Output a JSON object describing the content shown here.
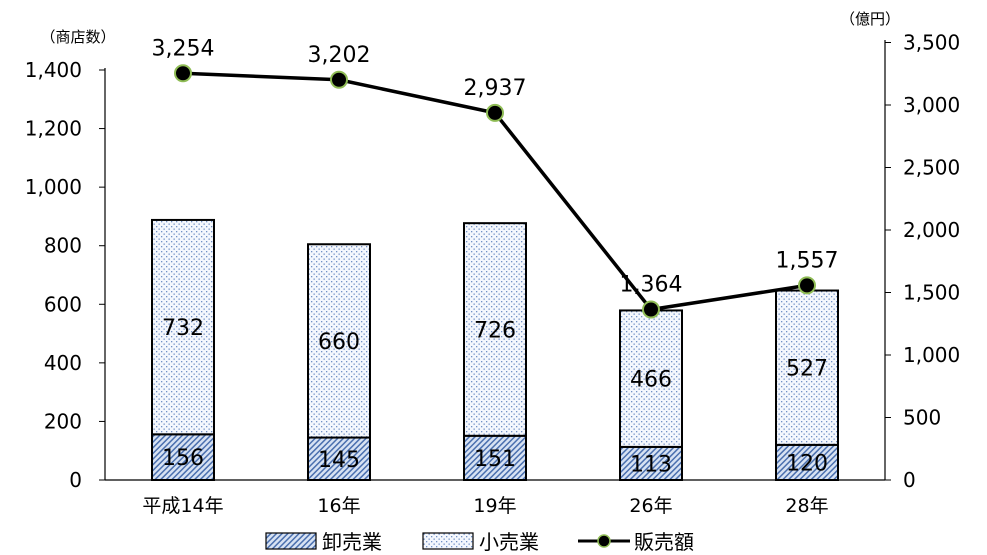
{
  "chart_data": {
    "type": "bar",
    "categories": [
      "平成14年",
      "16年",
      "19年",
      "26年",
      "28年"
    ],
    "series": [
      {
        "name": "卸売業",
        "type": "bar",
        "stack": true,
        "axis": "left",
        "values": [
          156,
          145,
          151,
          113,
          120
        ]
      },
      {
        "name": "小売業",
        "type": "bar",
        "stack": true,
        "axis": "left",
        "values": [
          732,
          660,
          726,
          466,
          527
        ]
      },
      {
        "name": "販売額",
        "type": "line",
        "axis": "right",
        "values": [
          3254,
          3202,
          2937,
          1364,
          1557
        ]
      }
    ],
    "left_axis": {
      "unit_label": "（商店数）",
      "ylim": [
        0,
        1400
      ],
      "ticks": [
        "0",
        "200",
        "400",
        "600",
        "800",
        "1,000",
        "1,200",
        "1,400"
      ]
    },
    "right_axis": {
      "unit_label": "（億円）",
      "ylim": [
        0,
        3500
      ],
      "ticks": [
        "0",
        "500",
        "1,000",
        "1,500",
        "2,000",
        "2,500",
        "3,000",
        "3,500"
      ]
    },
    "wholesale_labels": [
      "156",
      "145",
      "151",
      "113",
      "120"
    ],
    "retail_labels": [
      "732",
      "660",
      "726",
      "466",
      "527"
    ],
    "sales_labels": [
      "3,254",
      "3,202",
      "2,937",
      "1,364",
      "1,557"
    ],
    "legend": {
      "position": "bottom",
      "items": [
        {
          "label": "卸売業",
          "marker": "dense-hatch"
        },
        {
          "label": "小売業",
          "marker": "dotted"
        },
        {
          "label": "販売額",
          "marker": "line-dot"
        }
      ]
    },
    "colors": {
      "bar_outline": "#000000",
      "line": "#000000",
      "marker_fill": "#000000",
      "marker_ring": "#8fbc55",
      "pattern": "#5b7fb8"
    }
  }
}
